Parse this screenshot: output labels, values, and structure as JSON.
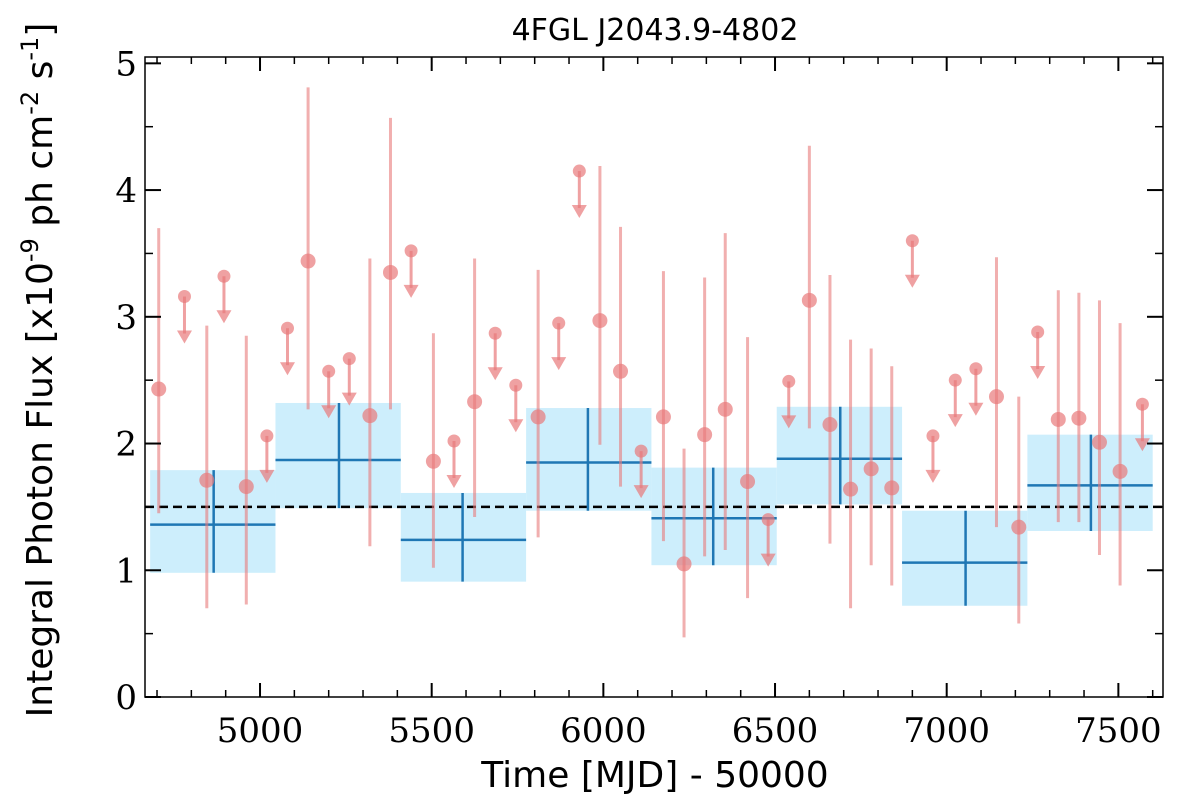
{
  "chart_data": {
    "type": "scatter",
    "title": "4FGL J2043.9-4802",
    "xlabel": "Time [MJD] - 50000",
    "ylabel": "Integral Photon Flux [x10^-9 ph cm^-2 s^-1]",
    "xlim": [
      4665,
      7630
    ],
    "ylim": [
      0,
      5.05
    ],
    "x_ticks": [
      "5000",
      "5500",
      "6000",
      "6500",
      "7000",
      "7500"
    ],
    "y_ticks": [
      "0",
      "1",
      "2",
      "3",
      "4",
      "5"
    ],
    "reference_line": {
      "y": 1.5,
      "style": "dashed",
      "color": "#000000"
    },
    "colors": {
      "points": "#e8797a",
      "bins": "#1f77b4",
      "bin_band": "#cdeefc"
    },
    "series": [
      {
        "kind": "detections",
        "points": [
          {
            "x": 4705,
            "y": 2.43,
            "lo": 1.45,
            "hi": 3.7
          },
          {
            "x": 4845,
            "y": 1.71,
            "lo": 0.7,
            "hi": 2.93
          },
          {
            "x": 4960,
            "y": 1.66,
            "lo": 0.73,
            "hi": 2.85
          },
          {
            "x": 5140,
            "y": 3.44,
            "lo": 2.27,
            "hi": 4.81
          },
          {
            "x": 5320,
            "y": 2.22,
            "lo": 1.19,
            "hi": 3.46
          },
          {
            "x": 5380,
            "y": 3.35,
            "lo": 2.27,
            "hi": 4.57
          },
          {
            "x": 5505,
            "y": 1.86,
            "lo": 1.02,
            "hi": 2.87
          },
          {
            "x": 5625,
            "y": 2.33,
            "lo": 1.42,
            "hi": 3.46
          },
          {
            "x": 5810,
            "y": 2.21,
            "lo": 1.26,
            "hi": 3.37
          },
          {
            "x": 5990,
            "y": 2.97,
            "lo": 1.99,
            "hi": 4.19
          },
          {
            "x": 6050,
            "y": 2.57,
            "lo": 1.66,
            "hi": 3.71
          },
          {
            "x": 6175,
            "y": 2.21,
            "lo": 1.23,
            "hi": 3.36
          },
          {
            "x": 6235,
            "y": 1.05,
            "lo": 0.47,
            "hi": 1.96
          },
          {
            "x": 6295,
            "y": 2.07,
            "lo": 1.11,
            "hi": 3.31
          },
          {
            "x": 6355,
            "y": 2.27,
            "lo": 1.16,
            "hi": 3.66
          },
          {
            "x": 6420,
            "y": 1.7,
            "lo": 0.78,
            "hi": 2.84
          },
          {
            "x": 6600,
            "y": 3.13,
            "lo": 2.12,
            "hi": 4.35
          },
          {
            "x": 6660,
            "y": 2.15,
            "lo": 1.21,
            "hi": 3.33
          },
          {
            "x": 6720,
            "y": 1.64,
            "lo": 0.7,
            "hi": 2.82
          },
          {
            "x": 6780,
            "y": 1.8,
            "lo": 1.04,
            "hi": 2.75
          },
          {
            "x": 6840,
            "y": 1.65,
            "lo": 0.88,
            "hi": 2.61
          },
          {
            "x": 7145,
            "y": 2.37,
            "lo": 1.34,
            "hi": 3.47
          },
          {
            "x": 7210,
            "y": 1.34,
            "lo": 0.58,
            "hi": 2.37
          },
          {
            "x": 7325,
            "y": 2.19,
            "lo": 1.38,
            "hi": 3.21
          },
          {
            "x": 7385,
            "y": 2.2,
            "lo": 1.38,
            "hi": 3.19
          },
          {
            "x": 7445,
            "y": 2.01,
            "lo": 1.12,
            "hi": 3.13
          },
          {
            "x": 7505,
            "y": 1.78,
            "lo": 0.88,
            "hi": 2.95
          }
        ]
      },
      {
        "kind": "upper_limits",
        "points": [
          {
            "x": 4780,
            "y": 3.16
          },
          {
            "x": 4895,
            "y": 3.32
          },
          {
            "x": 5020,
            "y": 2.06
          },
          {
            "x": 5080,
            "y": 2.91
          },
          {
            "x": 5200,
            "y": 2.57
          },
          {
            "x": 5260,
            "y": 2.67
          },
          {
            "x": 5440,
            "y": 3.52
          },
          {
            "x": 5565,
            "y": 2.02
          },
          {
            "x": 5685,
            "y": 2.87
          },
          {
            "x": 5745,
            "y": 2.46
          },
          {
            "x": 5870,
            "y": 2.95
          },
          {
            "x": 5930,
            "y": 4.15
          },
          {
            "x": 6110,
            "y": 1.94
          },
          {
            "x": 6480,
            "y": 1.4
          },
          {
            "x": 6540,
            "y": 2.49
          },
          {
            "x": 6900,
            "y": 3.6
          },
          {
            "x": 6960,
            "y": 2.06
          },
          {
            "x": 7025,
            "y": 2.5
          },
          {
            "x": 7085,
            "y": 2.59
          },
          {
            "x": 7265,
            "y": 2.88
          },
          {
            "x": 7570,
            "y": 2.31
          }
        ]
      },
      {
        "kind": "binned",
        "bins": [
          {
            "x0": 4680,
            "x1": 5045,
            "x": 4865,
            "y": 1.36,
            "lo": 0.98,
            "hi": 1.79
          },
          {
            "x0": 5045,
            "x1": 5410,
            "x": 5230,
            "y": 1.87,
            "lo": 1.49,
            "hi": 2.32
          },
          {
            "x0": 5410,
            "x1": 5775,
            "x": 5590,
            "y": 1.24,
            "lo": 0.91,
            "hi": 1.61
          },
          {
            "x0": 5775,
            "x1": 6140,
            "x": 5955,
            "y": 1.85,
            "lo": 1.47,
            "hi": 2.28
          },
          {
            "x0": 6140,
            "x1": 6505,
            "x": 6320,
            "y": 1.41,
            "lo": 1.04,
            "hi": 1.81
          },
          {
            "x0": 6505,
            "x1": 6870,
            "x": 6690,
            "y": 1.88,
            "lo": 1.52,
            "hi": 2.29
          },
          {
            "x0": 6870,
            "x1": 7235,
            "x": 7055,
            "y": 1.06,
            "lo": 0.72,
            "hi": 1.47
          },
          {
            "x0": 7235,
            "x1": 7600,
            "x": 7420,
            "y": 1.67,
            "lo": 1.31,
            "hi": 2.07
          }
        ]
      }
    ]
  }
}
